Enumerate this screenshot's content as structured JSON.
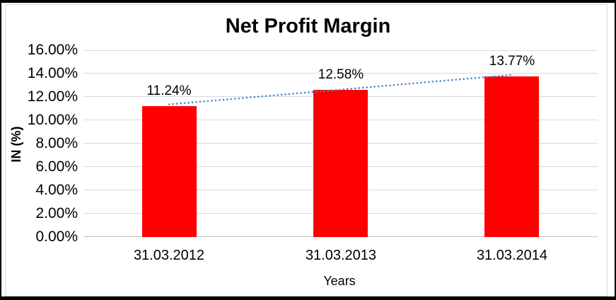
{
  "colors": {
    "bar": "#FF0000",
    "trendline": "#4E87C9",
    "gridline": "#D9D9D9",
    "axis_line": "#C0C0C0",
    "chart_border": "#D9D9D9",
    "outer_frame": "#000000",
    "text": "#000000",
    "background": "#FFFFFF"
  },
  "chart_data": {
    "type": "bar",
    "title": "Net Profit Margin",
    "xlabel": "Years",
    "ylabel": "IN (%)",
    "categories": [
      "31.03.2012",
      "31.03.2013",
      "31.03.2014"
    ],
    "values": [
      11.24,
      12.58,
      13.77
    ],
    "data_labels": [
      "11.24%",
      "12.58%",
      "13.77%"
    ],
    "ylim": [
      0,
      16
    ],
    "ytick_interval": 2,
    "ytick_labels": [
      "0.00%",
      "2.00%",
      "4.00%",
      "6.00%",
      "8.00%",
      "10.00%",
      "12.00%",
      "14.00%",
      "16.00%"
    ],
    "grid": true,
    "legend": "none",
    "bar_color": "#FF0000",
    "trendline": {
      "type": "linear",
      "style": "dotted",
      "color": "#4E87C9"
    }
  }
}
